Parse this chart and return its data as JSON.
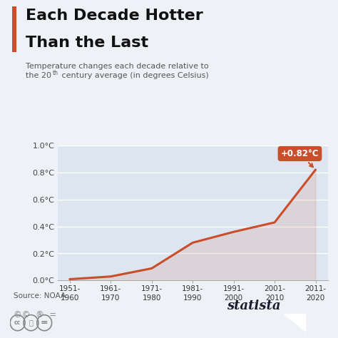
{
  "title_line1": "Each Decade Hotter",
  "title_line2": "Than the Last",
  "subtitle_line1": "Temperature changes each decade relative to",
  "subtitle_line2": "the 20th century average (in degrees Celsius)",
  "source": "Source: NOAA",
  "categories": [
    "1951-\n1960",
    "1961-\n1970",
    "1971-\n1980",
    "1981-\n1990",
    "1991-\n2000",
    "2001-\n2010",
    "2011-\n2020"
  ],
  "values": [
    0.01,
    0.03,
    0.09,
    0.28,
    0.36,
    0.43,
    0.82
  ],
  "line_color": "#C94E2B",
  "fill_color": "#C94E2B",
  "fill_alpha": 0.12,
  "annotation_text": "+0.82°C",
  "annotation_bg": "#C94E2B",
  "annotation_text_color": "#ffffff",
  "bg_color": "#eef2f7",
  "plot_bg_color": "#dde6f0",
  "title_bar_color": "#C94E2B",
  "ylim": [
    0.0,
    1.0
  ],
  "ytick_labels": [
    "0.0°C",
    "0.2°C",
    "0.4°C",
    "0.6°C",
    "0.8°C",
    "1.0°C"
  ],
  "ytick_values": [
    0.0,
    0.2,
    0.4,
    0.6,
    0.8,
    1.0
  ],
  "brand": "statista",
  "brand_color": "#1a1a2e",
  "grid_color": "#ffffff",
  "axis_color": "#aaaaaa"
}
